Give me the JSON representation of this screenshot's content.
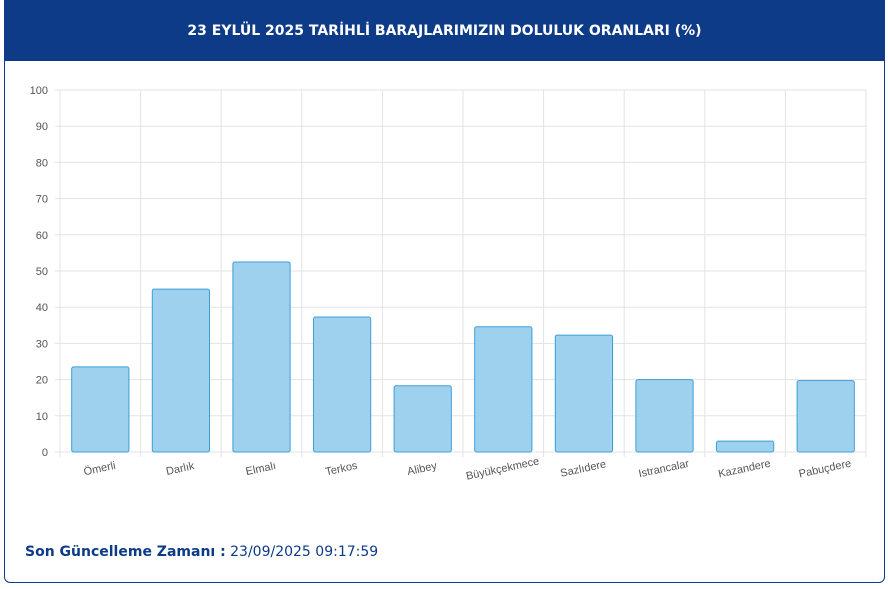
{
  "chart_data": {
    "type": "bar",
    "title": "23 EYLÜL 2025 TARİHLİ BARAJLARIMIZIN DOLULUK ORANLARI (%)",
    "categories": [
      "Ömerli",
      "Darlık",
      "Elmalı",
      "Terkos",
      "Alibey",
      "Büyükçekmece",
      "Sazlıdere",
      "Istrancalar",
      "Kazandere",
      "Pabuçdere"
    ],
    "values": [
      23.5,
      45,
      52.5,
      37.3,
      18.3,
      34.6,
      32.3,
      20,
      3,
      19.7
    ],
    "color": "#9ed1ed",
    "border_color": "#3d9fd8",
    "ylim": [
      0,
      100
    ],
    "yticks": [
      0,
      10,
      20,
      30,
      40,
      50,
      60,
      70,
      80,
      90,
      100
    ],
    "grid": true
  },
  "footer": {
    "label": "Son Güncelleme Zamanı :",
    "value": "23/09/2025 09:17:59"
  }
}
